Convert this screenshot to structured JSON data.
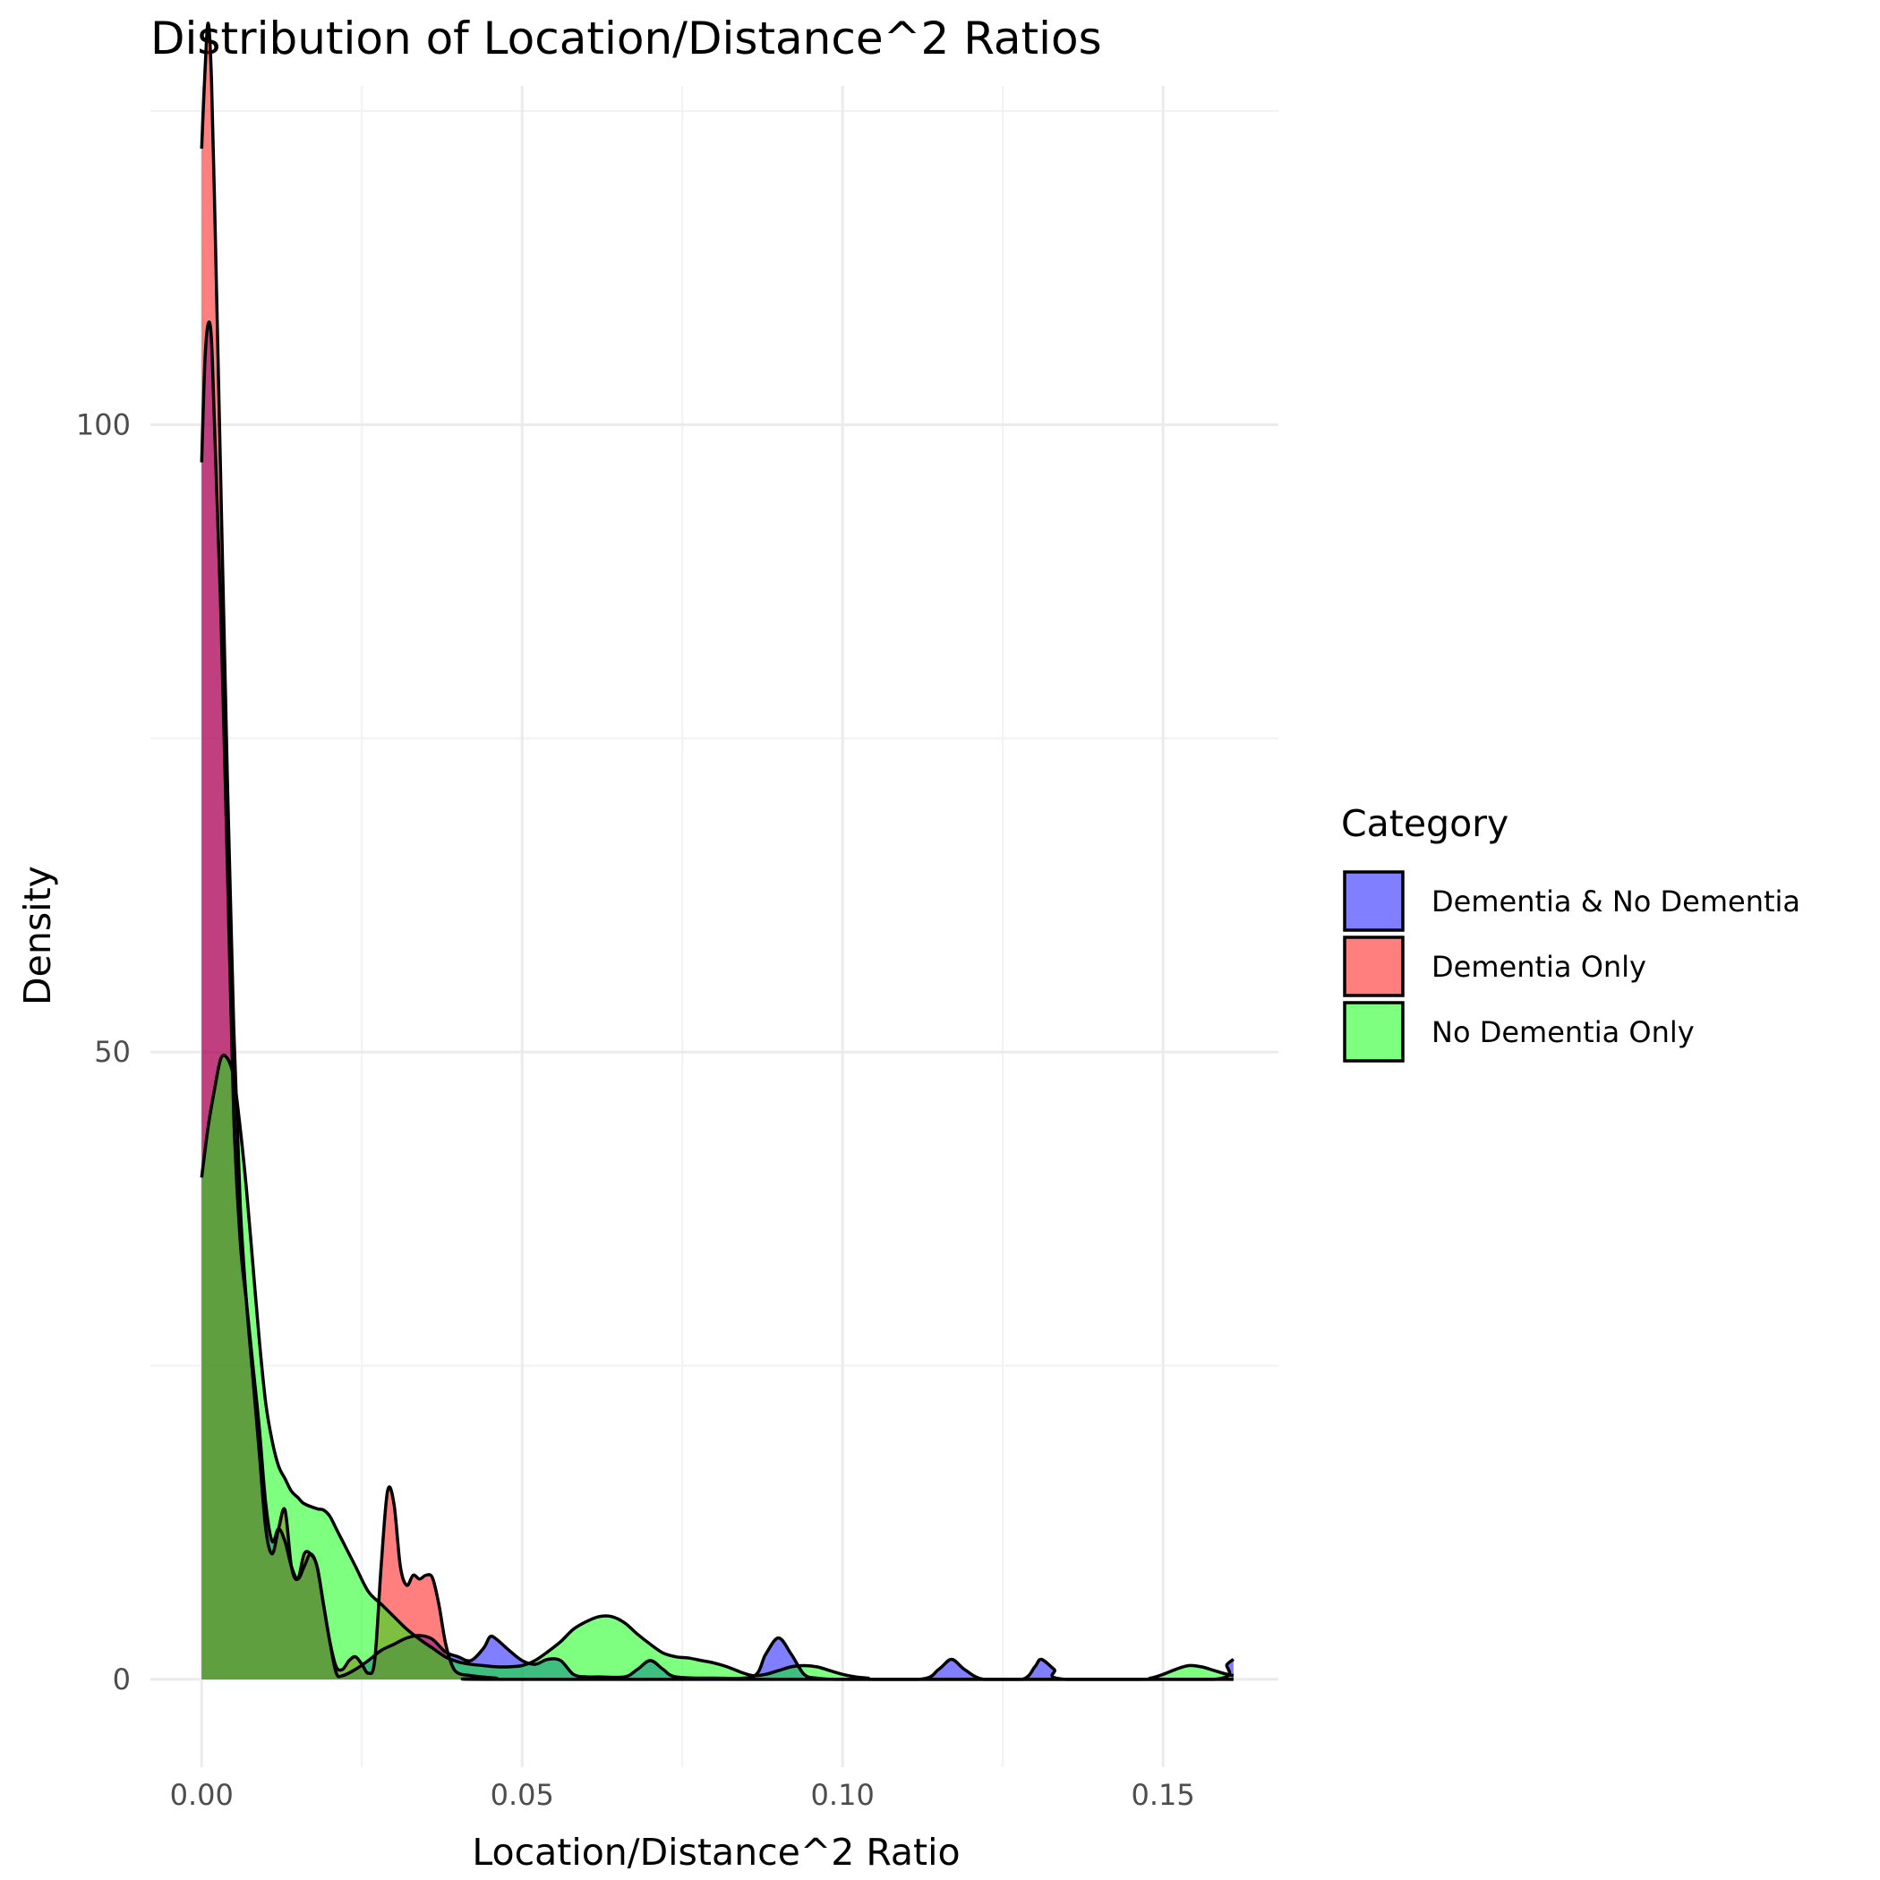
{
  "chart_data": {
    "type": "area",
    "title": "Distribution of Location/Distance^2 Ratios",
    "xlabel": "Location/Distance^2 Ratio",
    "ylabel": "Density",
    "xlim": [
      -0.008,
      0.168
    ],
    "ylim": [
      -7,
      127
    ],
    "x_ticks": [
      0.0,
      0.05,
      0.1,
      0.15
    ],
    "x_tick_labels": [
      "0.00",
      "0.05",
      "0.10",
      "0.15"
    ],
    "y_ticks": [
      0,
      50,
      100
    ],
    "y_tick_labels": [
      "0",
      "50",
      "100"
    ],
    "x_minor_ticks": [
      0.025,
      0.075,
      0.125
    ],
    "y_minor_ticks": [
      25,
      75,
      125
    ],
    "grid": true,
    "legend": {
      "title": "Category",
      "position": "right"
    },
    "series": [
      {
        "name": "Dementia & No Dementia",
        "color": "#0000FF",
        "opacity": 0.5,
        "points": [
          [
            0.0,
            97
          ],
          [
            0.0005,
            105
          ],
          [
            0.001,
            108
          ],
          [
            0.0015,
            107
          ],
          [
            0.002,
            100
          ],
          [
            0.003,
            85
          ],
          [
            0.004,
            65
          ],
          [
            0.005,
            45
          ],
          [
            0.006,
            35
          ],
          [
            0.007,
            30
          ],
          [
            0.008,
            25
          ],
          [
            0.009,
            20
          ],
          [
            0.01,
            14
          ],
          [
            0.011,
            11
          ],
          [
            0.012,
            12
          ],
          [
            0.013,
            11
          ],
          [
            0.014,
            9
          ],
          [
            0.015,
            8
          ],
          [
            0.016,
            9
          ],
          [
            0.017,
            10
          ],
          [
            0.018,
            9
          ],
          [
            0.019,
            6
          ],
          [
            0.02,
            3
          ],
          [
            0.021,
            0.5
          ],
          [
            0.022,
            0.3
          ],
          [
            0.024,
            0.8
          ],
          [
            0.026,
            1.5
          ],
          [
            0.028,
            2.3
          ],
          [
            0.03,
            2.8
          ],
          [
            0.032,
            3.3
          ],
          [
            0.034,
            3.5
          ],
          [
            0.036,
            3.2
          ],
          [
            0.038,
            2.2
          ],
          [
            0.04,
            1.8
          ],
          [
            0.042,
            1.5
          ],
          [
            0.044,
            2.5
          ],
          [
            0.045,
            3.4
          ],
          [
            0.046,
            3.2
          ],
          [
            0.048,
            2.3
          ],
          [
            0.05,
            1.5
          ],
          [
            0.052,
            1.2
          ],
          [
            0.054,
            1.6
          ],
          [
            0.056,
            1.5
          ],
          [
            0.058,
            0.4
          ],
          [
            0.06,
            0.2
          ],
          [
            0.062,
            0.2
          ],
          [
            0.066,
            0.2
          ],
          [
            0.068,
            0.8
          ],
          [
            0.07,
            1.5
          ],
          [
            0.072,
            0.8
          ],
          [
            0.074,
            0.2
          ],
          [
            0.08,
            0.1
          ],
          [
            0.086,
            0.2
          ],
          [
            0.088,
            2.0
          ],
          [
            0.09,
            3.3
          ],
          [
            0.092,
            2.0
          ],
          [
            0.094,
            0.4
          ],
          [
            0.096,
            0.1
          ],
          [
            0.1,
            0.0
          ],
          [
            0.112,
            0.0
          ],
          [
            0.115,
            0.8
          ],
          [
            0.117,
            1.6
          ],
          [
            0.119,
            0.8
          ],
          [
            0.122,
            0.0
          ],
          [
            0.128,
            0.0
          ],
          [
            0.13,
            1.0
          ],
          [
            0.131,
            1.6
          ],
          [
            0.133,
            0.8
          ],
          [
            0.135,
            0.0
          ],
          [
            0.158,
            0.0
          ],
          [
            0.16,
            1.2
          ],
          [
            0.161,
            1.6
          ]
        ]
      },
      {
        "name": "Dementia Only",
        "color": "#FF0000",
        "opacity": 0.5,
        "points": [
          [
            0.0,
            122
          ],
          [
            0.0005,
            128
          ],
          [
            0.001,
            132
          ],
          [
            0.0015,
            128
          ],
          [
            0.002,
            118
          ],
          [
            0.003,
            95
          ],
          [
            0.004,
            72
          ],
          [
            0.005,
            52
          ],
          [
            0.006,
            38
          ],
          [
            0.007,
            30
          ],
          [
            0.008,
            24
          ],
          [
            0.009,
            18
          ],
          [
            0.01,
            12
          ],
          [
            0.011,
            10
          ],
          [
            0.012,
            12
          ],
          [
            0.013,
            13.5
          ],
          [
            0.014,
            9
          ],
          [
            0.015,
            8
          ],
          [
            0.016,
            10
          ],
          [
            0.017,
            10
          ],
          [
            0.018,
            9
          ],
          [
            0.019,
            6
          ],
          [
            0.02,
            3
          ],
          [
            0.021,
            1.0
          ],
          [
            0.022,
            0.8
          ],
          [
            0.023,
            1.5
          ],
          [
            0.024,
            1.8
          ],
          [
            0.025,
            1.2
          ],
          [
            0.026,
            0.5
          ],
          [
            0.027,
            1.5
          ],
          [
            0.028,
            9
          ],
          [
            0.029,
            15
          ],
          [
            0.03,
            14
          ],
          [
            0.031,
            9
          ],
          [
            0.032,
            7.5
          ],
          [
            0.033,
            8.3
          ],
          [
            0.034,
            8.0
          ],
          [
            0.035,
            8.3
          ],
          [
            0.036,
            8.1
          ],
          [
            0.037,
            6
          ],
          [
            0.038,
            3
          ],
          [
            0.039,
            1.2
          ],
          [
            0.04,
            0.5
          ],
          [
            0.042,
            0.3
          ],
          [
            0.046,
            0.1
          ],
          [
            0.05,
            0.0
          ],
          [
            0.161,
            0.0
          ]
        ]
      },
      {
        "name": "No Dementia Only",
        "color": "#00FF00",
        "opacity": 0.5,
        "points": [
          [
            0.0,
            40
          ],
          [
            0.001,
            44
          ],
          [
            0.002,
            47
          ],
          [
            0.003,
            49.5
          ],
          [
            0.004,
            49.5
          ],
          [
            0.005,
            48
          ],
          [
            0.006,
            44
          ],
          [
            0.007,
            39
          ],
          [
            0.008,
            33
          ],
          [
            0.009,
            27
          ],
          [
            0.01,
            22
          ],
          [
            0.011,
            19
          ],
          [
            0.012,
            17
          ],
          [
            0.013,
            16
          ],
          [
            0.014,
            15
          ],
          [
            0.015,
            14.5
          ],
          [
            0.016,
            14
          ],
          [
            0.018,
            13.6
          ],
          [
            0.019,
            13.5
          ],
          [
            0.02,
            13
          ],
          [
            0.021,
            12
          ],
          [
            0.022,
            11
          ],
          [
            0.024,
            9
          ],
          [
            0.026,
            7
          ],
          [
            0.028,
            6
          ],
          [
            0.03,
            5
          ],
          [
            0.032,
            4
          ],
          [
            0.034,
            3.2
          ],
          [
            0.036,
            2.5
          ],
          [
            0.038,
            1.8
          ],
          [
            0.04,
            1.4
          ],
          [
            0.042,
            1.2
          ],
          [
            0.044,
            1.1
          ],
          [
            0.046,
            1.0
          ],
          [
            0.048,
            1.0
          ],
          [
            0.05,
            1.1
          ],
          [
            0.052,
            1.5
          ],
          [
            0.054,
            2.2
          ],
          [
            0.056,
            3.0
          ],
          [
            0.058,
            4.0
          ],
          [
            0.06,
            4.6
          ],
          [
            0.062,
            5.0
          ],
          [
            0.064,
            5.0
          ],
          [
            0.066,
            4.5
          ],
          [
            0.068,
            3.6
          ],
          [
            0.07,
            2.8
          ],
          [
            0.072,
            2.1
          ],
          [
            0.074,
            1.8
          ],
          [
            0.076,
            1.7
          ],
          [
            0.078,
            1.5
          ],
          [
            0.08,
            1.3
          ],
          [
            0.082,
            1.0
          ],
          [
            0.084,
            0.6
          ],
          [
            0.086,
            0.3
          ],
          [
            0.088,
            0.4
          ],
          [
            0.09,
            0.7
          ],
          [
            0.092,
            1.0
          ],
          [
            0.094,
            1.1
          ],
          [
            0.096,
            1.0
          ],
          [
            0.098,
            0.7
          ],
          [
            0.1,
            0.4
          ],
          [
            0.102,
            0.2
          ],
          [
            0.104,
            0.1
          ],
          [
            0.106,
            0.0
          ],
          [
            0.145,
            0.0
          ],
          [
            0.148,
            0.1
          ],
          [
            0.15,
            0.4
          ],
          [
            0.152,
            0.8
          ],
          [
            0.154,
            1.1
          ],
          [
            0.156,
            1.0
          ],
          [
            0.158,
            0.7
          ],
          [
            0.16,
            0.4
          ],
          [
            0.161,
            0.3
          ]
        ]
      }
    ]
  }
}
